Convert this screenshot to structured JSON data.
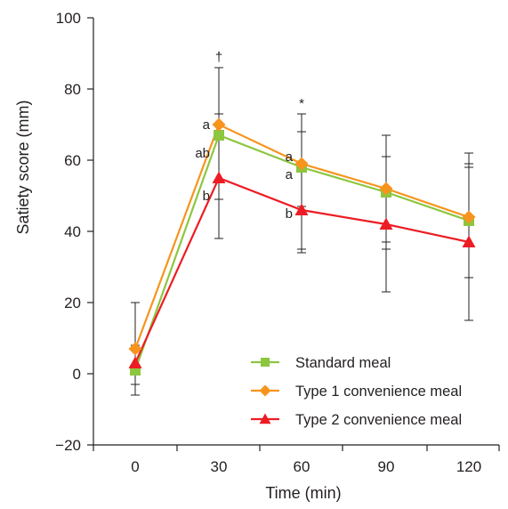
{
  "chart_data": {
    "type": "line",
    "xlabel": "Time (min)",
    "ylabel": "Satiety score (mm)",
    "x": [
      0,
      30,
      60,
      90,
      120
    ],
    "xlim": [
      0,
      120
    ],
    "ylim": [
      -20,
      100
    ],
    "yticks": [
      -20,
      0,
      20,
      40,
      60,
      80,
      100
    ],
    "ytick_labels": [
      "−20",
      "0",
      "20",
      "40",
      "60",
      "80",
      "100"
    ],
    "xtick_labels": [
      "0",
      "30",
      "60",
      "90",
      "120"
    ],
    "grid": false,
    "legend_position": "bottom-right",
    "series": [
      {
        "name": "Standard meal",
        "marker": "square",
        "color": "#8dc63f",
        "values": [
          1,
          67,
          58,
          51,
          43
        ],
        "error_low": [
          -6,
          38,
          35,
          35,
          27
        ],
        "error_high": [
          8,
          86,
          68,
          67,
          59
        ]
      },
      {
        "name": "Type 1 convenience meal",
        "marker": "diamond",
        "color": "#f7941d",
        "values": [
          7,
          70,
          59,
          52,
          44
        ],
        "error_low": [
          -6,
          49,
          47,
          37,
          27
        ],
        "error_high": [
          20,
          86,
          73,
          67,
          62
        ]
      },
      {
        "name": "Type 2 convenience meal",
        "marker": "triangle",
        "color": "#ed1c24",
        "values": [
          3,
          55,
          46,
          42,
          37
        ],
        "error_low": [
          -3,
          38,
          34,
          23,
          15
        ],
        "error_high": [
          8,
          73,
          57,
          61,
          58
        ]
      }
    ],
    "annotations": [
      {
        "text": "†",
        "x": 30,
        "y": 89
      },
      {
        "text": "*",
        "x": 60,
        "y": 76
      },
      {
        "text": "a",
        "x": 30,
        "y": 70,
        "side": "left"
      },
      {
        "text": "ab",
        "x": 30,
        "y": 62,
        "side": "left"
      },
      {
        "text": "b",
        "x": 30,
        "y": 50,
        "side": "left"
      },
      {
        "text": "a",
        "x": 60,
        "y": 61,
        "side": "left"
      },
      {
        "text": "a",
        "x": 60,
        "y": 56,
        "side": "left"
      },
      {
        "text": "b",
        "x": 60,
        "y": 45,
        "side": "left"
      }
    ]
  }
}
